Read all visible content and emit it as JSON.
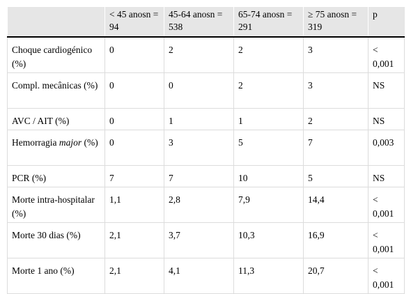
{
  "table": {
    "headers": [
      "",
      "< 45 anosn = 94",
      "45-64 anosn = 538",
      "65-74 anosn = 291",
      "≥ 75 anosn = 319",
      "p"
    ],
    "rows": [
      {
        "label": "Choque cardiogénico (%)",
        "label_italic": "",
        "label_suffix": "",
        "values": [
          "0",
          "2",
          "2",
          "3",
          "< 0,001"
        ]
      },
      {
        "label": "Compl. mecânicas (%)",
        "label_italic": "",
        "label_suffix": "",
        "values": [
          "0",
          "0",
          "2",
          "3",
          "NS"
        ]
      },
      {
        "label": "AVC / AIT (%)",
        "label_italic": "",
        "label_suffix": "",
        "values": [
          "0",
          "1",
          "1",
          "2",
          "NS"
        ]
      },
      {
        "label": "Hemorragia ",
        "label_italic": "major",
        "label_suffix": " (%)",
        "values": [
          "0",
          "3",
          "5",
          "7",
          "0,003"
        ]
      },
      {
        "label": "PCR (%)",
        "label_italic": "",
        "label_suffix": "",
        "values": [
          "7",
          "7",
          "10",
          "5",
          "NS"
        ]
      },
      {
        "label": "Morte intra-hospitalar (%)",
        "label_italic": "",
        "label_suffix": "",
        "values": [
          "1,1",
          "2,8",
          "7,9",
          "14,4",
          "< 0,001"
        ]
      },
      {
        "label": "Morte 30 dias (%)",
        "label_italic": "",
        "label_suffix": "",
        "values": [
          "2,1",
          "3,7",
          "10,3",
          "16,9",
          "< 0,001"
        ]
      },
      {
        "label": "Morte 1 ano (%)",
        "label_italic": "",
        "label_suffix": "",
        "values": [
          "2,1",
          "4,1",
          "11,3",
          "20,7",
          "< 0,001"
        ]
      }
    ]
  }
}
